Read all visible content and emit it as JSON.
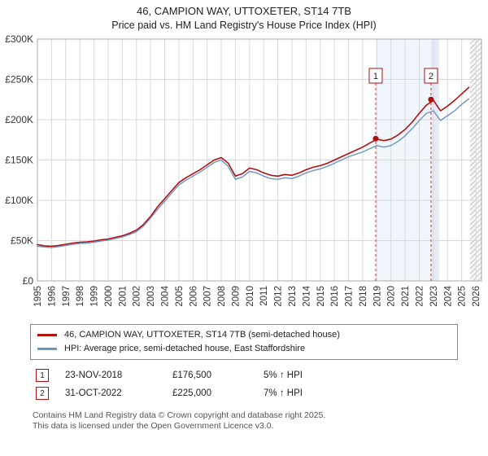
{
  "header": {
    "title": "46, CAMPION WAY, UTTOXETER, ST14 7TB",
    "subtitle": "Price paid vs. HM Land Registry's House Price Index (HPI)"
  },
  "chart_data": {
    "type": "line",
    "xlim": [
      1995,
      2026.4
    ],
    "ylim": [
      0,
      300000
    ],
    "grid": true,
    "legend_position": "bottom",
    "yticks": [
      {
        "value": 0,
        "label": "£0"
      },
      {
        "value": 50000,
        "label": "£50K"
      },
      {
        "value": 100000,
        "label": "£100K"
      },
      {
        "value": 150000,
        "label": "£150K"
      },
      {
        "value": 200000,
        "label": "£200K"
      },
      {
        "value": 250000,
        "label": "£250K"
      },
      {
        "value": 300000,
        "label": "£300K"
      }
    ],
    "xticks": [
      1995,
      1996,
      1997,
      1998,
      1999,
      2000,
      2001,
      2002,
      2003,
      2004,
      2005,
      2006,
      2007,
      2008,
      2009,
      2010,
      2011,
      2012,
      2013,
      2014,
      2015,
      2016,
      2017,
      2018,
      2019,
      2020,
      2021,
      2022,
      2023,
      2024,
      2025,
      2026
    ],
    "x": [
      1995,
      1995.5,
      1996,
      1996.5,
      1997,
      1997.5,
      1998,
      1998.5,
      1999,
      1999.5,
      2000,
      2000.5,
      2001,
      2001.5,
      2002,
      2002.5,
      2003,
      2003.5,
      2004,
      2004.5,
      2005,
      2005.5,
      2006,
      2006.5,
      2007,
      2007.5,
      2008,
      2008.5,
      2009,
      2009.5,
      2010,
      2010.5,
      2011,
      2011.5,
      2012,
      2012.5,
      2013,
      2013.5,
      2014,
      2014.5,
      2015,
      2015.5,
      2016,
      2016.5,
      2017,
      2017.5,
      2018,
      2018.5,
      2019,
      2019.5,
      2020,
      2020.5,
      2021,
      2021.5,
      2022,
      2022.5,
      2023,
      2023.5,
      2024,
      2024.5,
      2025,
      2025.5
    ],
    "series": [
      {
        "name": "46, CAMPION WAY, UTTOXETER, ST14 7TB (semi-detached house)",
        "color": "#b01010",
        "width": 1.6,
        "values": [
          45000,
          43500,
          43000,
          44000,
          45500,
          47000,
          48000,
          48500,
          49500,
          51000,
          52000,
          54000,
          56000,
          59000,
          63000,
          70000,
          80000,
          92000,
          102000,
          112000,
          122000,
          128000,
          133000,
          138000,
          144000,
          150000,
          153000,
          146000,
          130000,
          133000,
          140000,
          138000,
          134000,
          131000,
          130000,
          132000,
          131000,
          134000,
          138000,
          141000,
          143000,
          146000,
          150000,
          154000,
          158000,
          162000,
          166000,
          171000,
          176000,
          174000,
          176000,
          181000,
          188000,
          197000,
          208000,
          218000,
          224000,
          211000,
          217000,
          224000,
          232000,
          240000
        ]
      },
      {
        "name": "HPI: Average price, semi-detached house, East Staffordshire",
        "color": "#6b96c2",
        "width": 1.4,
        "values": [
          43000,
          42000,
          41500,
          42500,
          44000,
          45500,
          46500,
          47000,
          48000,
          49500,
          50500,
          52500,
          54500,
          57500,
          61000,
          68000,
          78000,
          89000,
          99000,
          109000,
          119000,
          125000,
          130000,
          135000,
          141000,
          147000,
          150000,
          142000,
          126000,
          129000,
          136000,
          134000,
          130000,
          127000,
          126000,
          128000,
          127000,
          130000,
          134000,
          137000,
          139000,
          142000,
          146000,
          150000,
          154000,
          157000,
          160000,
          164000,
          168000,
          166000,
          168000,
          173000,
          180000,
          189000,
          199000,
          208000,
          211000,
          199000,
          205000,
          211000,
          219000,
          226000
        ]
      }
    ],
    "regions": [
      {
        "from": 2018.92,
        "to": 2022.83,
        "color": "#f1f5fc"
      },
      {
        "from": 2022.83,
        "to": 2023.4,
        "color": "#e4ebf7"
      }
    ],
    "future_from": 2025.6,
    "sales": [
      {
        "marker": "1",
        "x": 2018.92,
        "price": 176500
      },
      {
        "marker": "2",
        "x": 2022.83,
        "price": 225000
      }
    ],
    "marker_color": "#b01010",
    "dashed_line_color": "#cc3333",
    "grid_color": "#d9d9d9"
  },
  "legend": {
    "items": [
      {
        "label": "46, CAMPION WAY, UTTOXETER, ST14 7TB (semi-detached house)",
        "color": "#b01010"
      },
      {
        "label": "HPI: Average price, semi-detached house, East Staffordshire",
        "color": "#6b96c2"
      }
    ]
  },
  "sales_table": {
    "rows": [
      {
        "marker": "1",
        "date": "23-NOV-2018",
        "price": "£176,500",
        "hpi": "5% ↑ HPI"
      },
      {
        "marker": "2",
        "date": "31-OCT-2022",
        "price": "£225,000",
        "hpi": "7% ↑ HPI"
      }
    ]
  },
  "footer": {
    "line1": "Contains HM Land Registry data © Crown copyright and database right 2025.",
    "line2": "This data is licensed under the Open Government Licence v3.0."
  }
}
